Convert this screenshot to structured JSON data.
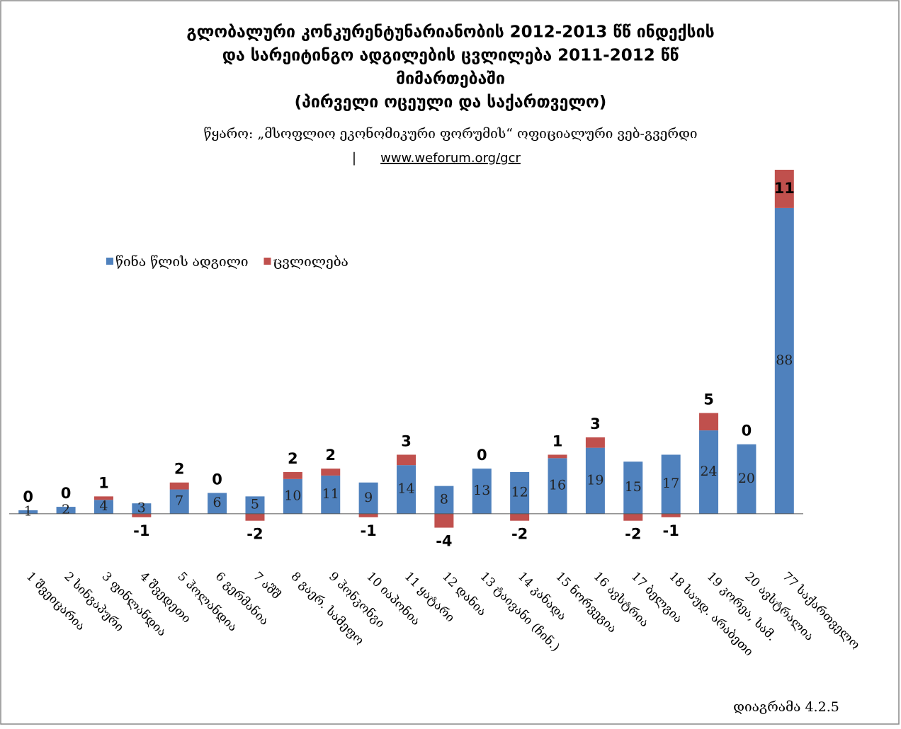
{
  "chart_data": {
    "type": "stacked_bar",
    "title": [
      "გლობალური კონკურენტუნარიანობის 2012-2013 წწ ინდექსის",
      "და  სარეიტინგო ადგილების ცვლილება  2011-2012 წწ",
      "მიმართებაში",
      "(პირველი ოცეული და საქართველო)"
    ],
    "source": "წყარო: „მსოფლიო ეკონომიკური ფორუმის“ ოფიციალური ვებ-გვერდი",
    "source_separator": "|",
    "source_link": "www.weforum.org/gcr",
    "footnote": "დიაგრამა 4.2.5",
    "categories": [
      "1 შვეიცარია",
      "2 სინგაპური",
      "3 ფინლანდია",
      "4 შვედეთი",
      "5 ჰოლანდია",
      "6 გერმანია",
      "7 აშშ",
      "8 გაერ. სამეფო",
      "9 ჰონკონგი",
      "10 იაპონია",
      "11 ყატარი",
      "12 დანია",
      "13 ტაივანი (ჩინ.)",
      "14 კანადა",
      "15 ნორვეგია",
      "16 ავსტრია",
      "17 ბელგია",
      "18 საუდ. არაბეთი",
      "19 კორეა, სამ.",
      "20 ავსტრალია",
      "77 საქართველო"
    ],
    "series": [
      {
        "name": "წინა წლის ადგილი",
        "color": "#4f81bd",
        "values": [
          1,
          2,
          4,
          3,
          7,
          6,
          5,
          10,
          11,
          9,
          14,
          8,
          13,
          12,
          16,
          19,
          15,
          17,
          24,
          20,
          88
        ]
      },
      {
        "name": "ცვლილება",
        "color": "#c0504d",
        "values": [
          0,
          0,
          1,
          -1,
          2,
          0,
          -2,
          2,
          2,
          -1,
          3,
          -4,
          0,
          -2,
          1,
          3,
          -2,
          -1,
          5,
          0,
          11
        ]
      }
    ],
    "ylim": [
      -10,
      100
    ],
    "legend": "top-left"
  }
}
